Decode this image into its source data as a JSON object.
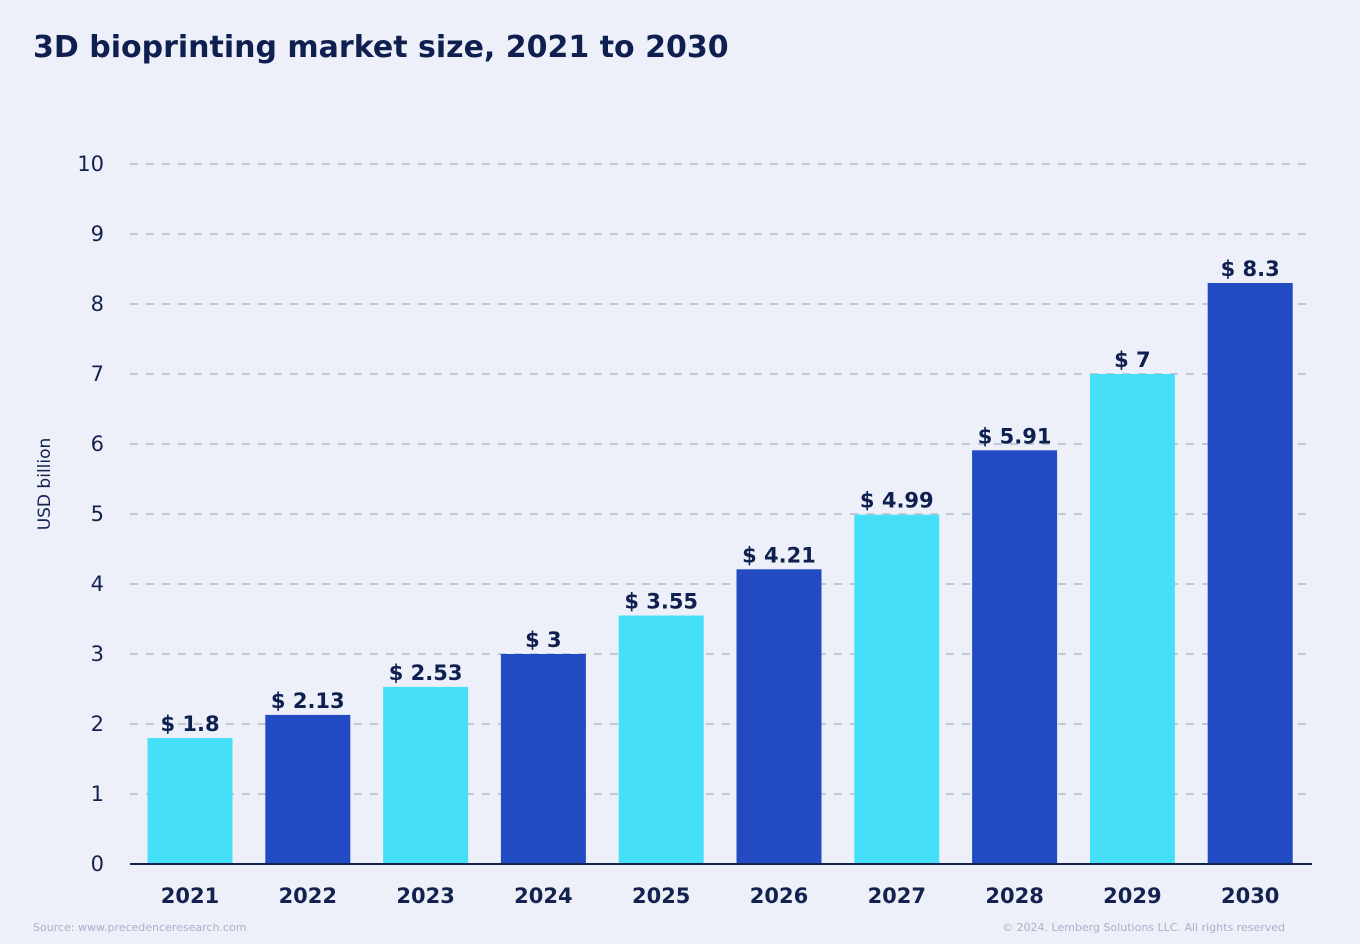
{
  "title": "3D bioprinting market size, 2021 to 2030",
  "source": "Source: www.precedenceresearch.com",
  "copyright": "© 2024. Lemberg Solutions LLC. All rights reserved",
  "colors": {
    "background": "#eef0f9",
    "text": "#0f1f4f",
    "cyan": "#45e0f8",
    "blue": "#224bc3",
    "grid": "#c2c7d6",
    "axis": "#14224f"
  },
  "chart_data": {
    "type": "bar",
    "title": "3D bioprinting market size, 2021 to 2030",
    "xlabel": "",
    "ylabel": "USD billion",
    "categories": [
      "2021",
      "2022",
      "2023",
      "2024",
      "2025",
      "2026",
      "2027",
      "2028",
      "2029",
      "2030"
    ],
    "values": [
      1.8,
      2.13,
      2.53,
      3,
      3.55,
      4.21,
      4.99,
      5.91,
      7,
      8.3
    ],
    "data_labels": [
      "$ 1.8",
      "$ 2.13",
      "$ 2.53",
      "$ 3",
      "$ 3.55",
      "$ 4.21",
      "$ 4.99",
      "$ 5.91",
      "$ 7",
      "$ 8.3"
    ],
    "bar_colors": [
      "#45e0f8",
      "#224bc3",
      "#45e0f8",
      "#224bc3",
      "#45e0f8",
      "#224bc3",
      "#45e0f8",
      "#224bc3",
      "#45e0f8",
      "#224bc3"
    ],
    "yticks": [
      0,
      1,
      2,
      3,
      4,
      5,
      6,
      7,
      8,
      9,
      10
    ],
    "ylim": [
      0,
      10
    ],
    "grid": true,
    "legend": "none"
  }
}
